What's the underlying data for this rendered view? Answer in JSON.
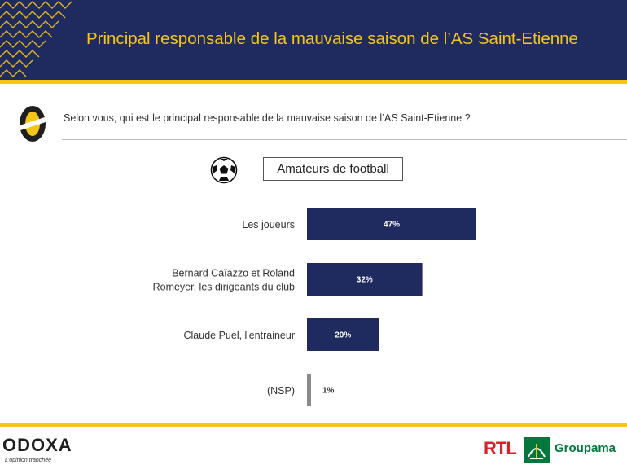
{
  "header": {
    "title": "Principal responsable de la mauvaise saison de l’AS Saint-Etienne"
  },
  "question": {
    "text": "Selon vous, qui est le principal responsable de la mauvaise saison de l’AS Saint-Etienne ?"
  },
  "segment": {
    "label": "Amateurs de football",
    "icon": "soccer-ball-icon"
  },
  "colors": {
    "navy": "#1f2a5e",
    "gold": "#f5c518",
    "bar": "#1f2a5e",
    "bar_nsp": "#8a8a8a"
  },
  "chart_data": {
    "type": "bar",
    "orientation": "horizontal",
    "categories": [
      "Les joueurs",
      "Bernard Caïazzo et Roland Romeyer, les dirigeants du club",
      "Claude Puel, l'entraineur",
      "(NSP)"
    ],
    "category_lines": [
      [
        "Les joueurs"
      ],
      [
        "Bernard Caïazzo et Roland",
        "Romeyer, les dirigeants du club"
      ],
      [
        "Claude Puel, l'entraineur"
      ],
      [
        "(NSP)"
      ]
    ],
    "values": [
      47,
      32,
      20,
      1
    ],
    "labels": [
      "47%",
      "32%",
      "20%",
      "1%"
    ],
    "unit": "%",
    "xlim": [
      0,
      100
    ],
    "grid": false,
    "legend": "none"
  },
  "footer": {
    "brand": "ODOXA",
    "tagline": "L'opinion tranchée",
    "partner1": "RTL",
    "partner2": "Groupama"
  }
}
